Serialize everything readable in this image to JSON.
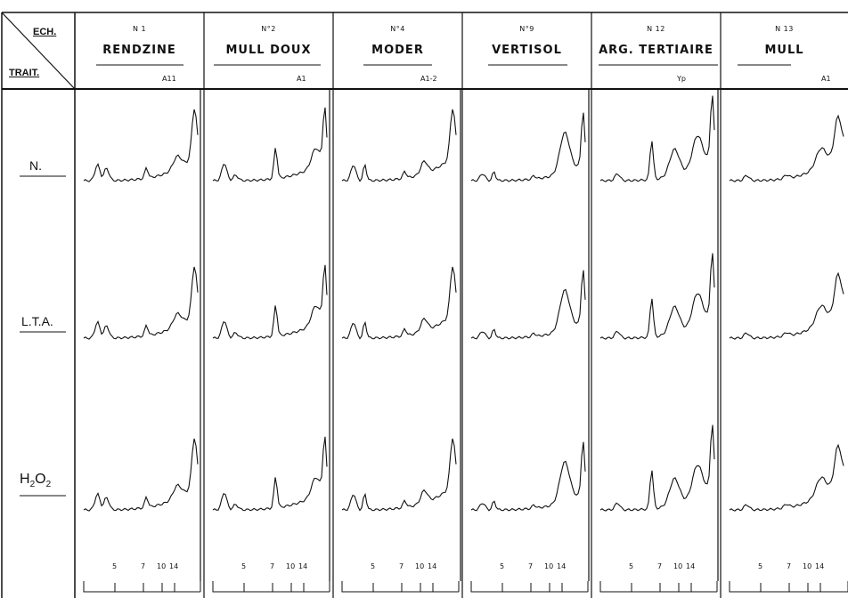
{
  "header": {
    "corner_top": "ECH.",
    "corner_bottom": "TRAIT."
  },
  "samples": [
    {
      "number": "N 1",
      "name": "RENDZINE",
      "horizon": "A11"
    },
    {
      "number": "N°2",
      "name": "MULL DOUX",
      "horizon": "A1"
    },
    {
      "number": "N°4",
      "name": "MODER",
      "horizon": "A1-2"
    },
    {
      "number": "N°9",
      "name": "VERTISOL",
      "horizon": ""
    },
    {
      "number": "N 12",
      "name": "ARG. TERTIAIRE",
      "horizon": "Yp"
    },
    {
      "number": "N 13",
      "name": "MULL",
      "horizon": "A1"
    }
  ],
  "treatments": [
    {
      "label": "N."
    },
    {
      "label": "L.T.A."
    },
    {
      "label_main": "H",
      "label_sub1": "2",
      "label_mid": "O",
      "label_sub2": "2"
    }
  ],
  "axis_ticks": [
    "5",
    "7",
    "10",
    "14"
  ],
  "axis_ticks_col3": [
    "5",
    "7",
    "10",
    "14"
  ]
}
